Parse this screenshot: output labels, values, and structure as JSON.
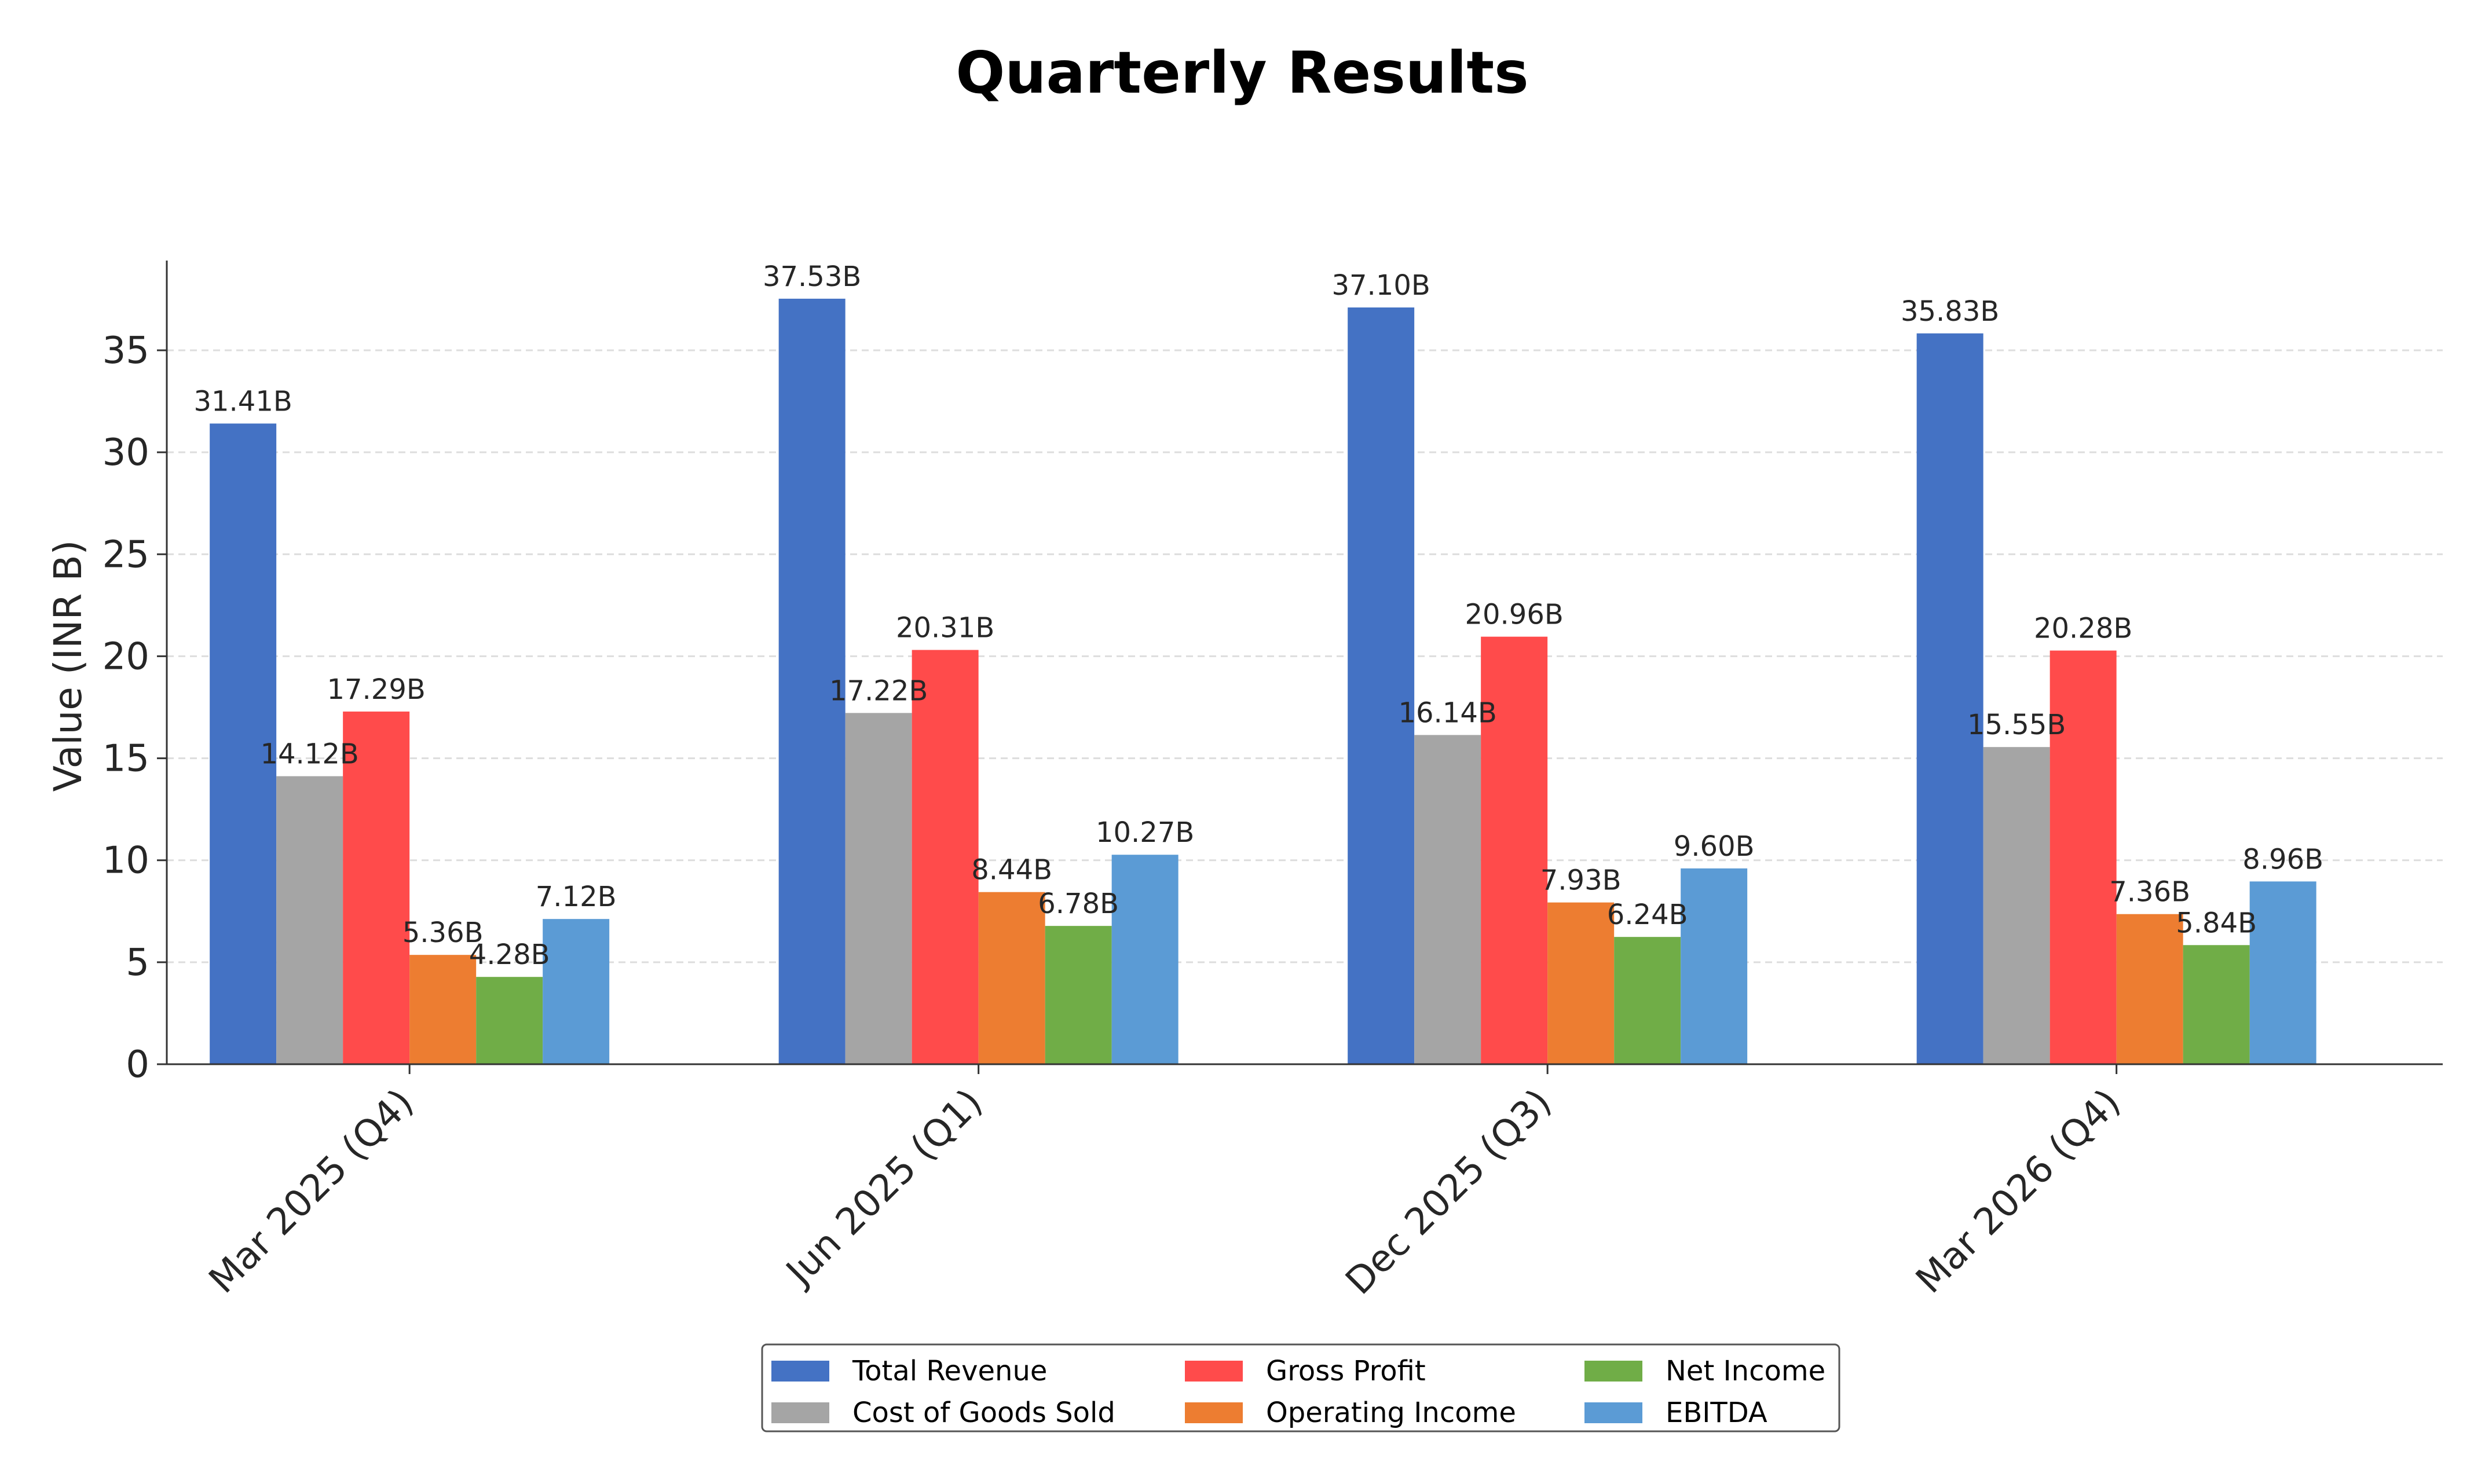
{
  "chart_data": {
    "type": "bar",
    "title": "Quarterly Results",
    "xlabel": "",
    "ylabel": "Value (INR B)",
    "ylim": [
      0,
      39.4
    ],
    "yticks": [
      0,
      5,
      10,
      15,
      20,
      25,
      30,
      35
    ],
    "grid": "horizontal dashed",
    "legend_position": "bottom-center",
    "categories": [
      "Mar 2025 (Q4)",
      "Jun 2025 (Q1)",
      "Dec 2025 (Q3)",
      "Mar 2026 (Q4)"
    ],
    "series": [
      {
        "name": "Total Revenue",
        "color": "#4472C4",
        "values": [
          31.41,
          37.53,
          37.1,
          35.83
        ],
        "labels": [
          "31.41B",
          "37.53B",
          "37.10B",
          "35.83B"
        ]
      },
      {
        "name": "Cost of Goods Sold",
        "color": "#A5A5A5",
        "values": [
          14.12,
          17.22,
          16.14,
          15.55
        ],
        "labels": [
          "14.12B",
          "17.22B",
          "16.14B",
          "15.55B"
        ]
      },
      {
        "name": "Gross Profit",
        "color": "#FF4B4B",
        "values": [
          17.29,
          20.31,
          20.96,
          20.28
        ],
        "labels": [
          "17.29B",
          "20.31B",
          "20.96B",
          "20.28B"
        ]
      },
      {
        "name": "Operating Income",
        "color": "#ED7D31",
        "values": [
          5.36,
          8.44,
          7.93,
          7.36
        ],
        "labels": [
          "5.36B",
          "8.44B",
          "7.93B",
          "7.36B"
        ]
      },
      {
        "name": "Net Income",
        "color": "#70AD47",
        "values": [
          4.28,
          6.78,
          6.24,
          5.84
        ],
        "labels": [
          "4.28B",
          "6.78B",
          "6.24B",
          "5.84B"
        ]
      },
      {
        "name": "EBITDA",
        "color": "#5B9BD5",
        "values": [
          7.12,
          10.27,
          9.6,
          8.96
        ],
        "labels": [
          "7.12B",
          "10.27B",
          "9.60B",
          "8.96B"
        ]
      }
    ]
  }
}
